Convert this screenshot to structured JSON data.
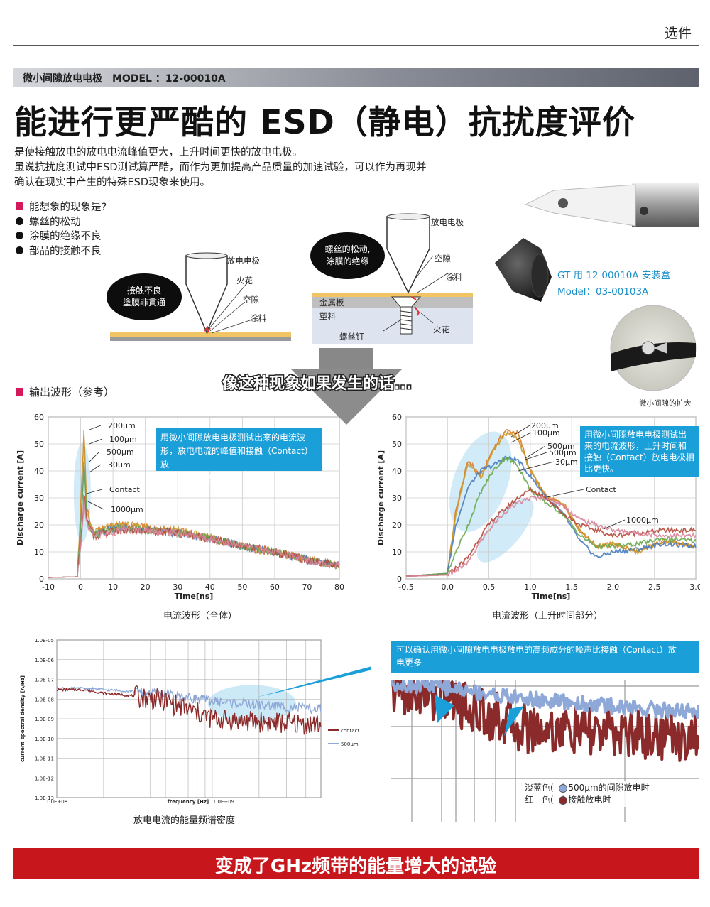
{
  "header": {
    "tab": "选件"
  },
  "model_bar": "微小间隙放电电极　MODEL ：12-00010A",
  "title": "能进行更严酷的 ESD（静电）抗扰度评价",
  "intro": [
    "是使接触放电的放电电流峰值更大，上升时间更快的放电电极。",
    "虽说抗扰度测试中ESD测试算严酷，而作为更加提高产品质量的加速试验，可以作为再现并",
    "确认在现实中产生的特殊ESD现象来使用。"
  ],
  "phenomena": {
    "heading": "能想象的现象是?",
    "items": [
      "螺丝的松动",
      "涂膜的绝缘不良",
      "部品的接触不良"
    ]
  },
  "diagram1": {
    "bubble": [
      "接触不良",
      "塗膜非貫通"
    ],
    "labels": {
      "electrode": "放电电极",
      "spark": "火花",
      "gap": "空隙",
      "coating": "涂料"
    }
  },
  "diagram2": {
    "bubble": [
      "螺丝的松动,",
      "涂膜的绝缘"
    ],
    "labels": {
      "electrode": "放电电极",
      "gap": "空隙",
      "coating": "涂料",
      "metal": "金属板",
      "plastic": "塑料",
      "screw": "螺丝钉",
      "spark": "火花"
    }
  },
  "accessory": {
    "box_label": "GT 用 12-00010A 安装盒",
    "box_model": "Model：03-00103A",
    "zoom_caption": "微小间隙的扩大"
  },
  "arrow_text": "像这种现象如果发生的话...",
  "waveform": {
    "heading": "输出波形（参考）",
    "ylabel": "Discharge current [A]",
    "xlabel": "Time[ns]",
    "caption_full": "电流波形（全体）",
    "caption_rise": "电流波形（上升时间部分）",
    "note_full": [
      "用微小间隙放电电极测试出来的电流波",
      "形，放电电流的峰值和接触（Contact）放",
      "电电极相比更大。"
    ],
    "note_rise": [
      "用微小间隙放电电极测试出",
      "来的电流波形，上升时间和",
      "接触（Contact）放电电极相",
      "比更快。"
    ],
    "series_labels": [
      "200μm",
      "100μm",
      "500μm",
      "30μm",
      "Contact",
      "1000μm"
    ],
    "series_colors": [
      "#e07a1f",
      "#c89a2c",
      "#4a7fc0",
      "#6aa84f",
      "#b64a3c",
      "#d8869a",
      "#8c3b6e",
      "#3aa0a0"
    ]
  },
  "spectrum": {
    "ylabel": "current spectral density [A/Hz]",
    "xlabel": "frequency [Hz]",
    "yticks": [
      "1.0E-05",
      "1.0E-06",
      "1.0E-07",
      "1.0E-08",
      "1.0E-09",
      "1.0E-10",
      "1.0E-11",
      "1.0E-12",
      "1.0E-13"
    ],
    "xticks": [
      "1.0E+08",
      "1.0E+09"
    ],
    "legend": [
      "contact",
      "500μm"
    ],
    "caption": "放电电流的能量频谱密度",
    "note": [
      "可以确认用微小间隙放电电极放电的高频成分的噪声比接触（Contact）放",
      "电更多"
    ],
    "zoom_legend": [
      "淡蓝色(　):500μm的间隙放电时",
      "红　色(　):接触放电时"
    ]
  },
  "footer_banner": "变成了GHz频带的能量增大的试验",
  "chart_data": [
    {
      "type": "line",
      "title": "电流波形（全体）",
      "xlabel": "Time[ns]",
      "ylabel": "Discharge current [A]",
      "xlim": [
        -10,
        80
      ],
      "ylim": [
        0,
        60
      ],
      "xticks": [
        -10,
        0,
        10,
        20,
        30,
        40,
        50,
        60,
        70,
        80
      ],
      "yticks": [
        0,
        10,
        20,
        30,
        40,
        50,
        60
      ],
      "grid": true,
      "series": [
        {
          "name": "200μm",
          "x": [
            -10,
            -1,
            0.5,
            1,
            2,
            4,
            8,
            12,
            20,
            30,
            40,
            50,
            60,
            70,
            80
          ],
          "values": [
            0.5,
            0.8,
            40,
            55,
            25,
            17,
            19,
            20,
            19,
            18,
            15,
            12,
            10,
            7,
            5
          ]
        },
        {
          "name": "100μm",
          "x": [
            -10,
            -1,
            0.5,
            1,
            2,
            4,
            8,
            12,
            20,
            30,
            40,
            50,
            60,
            70,
            80
          ],
          "values": [
            0.5,
            0.8,
            38,
            53,
            24,
            17,
            19,
            20,
            19,
            18,
            15,
            12,
            10,
            7,
            5
          ]
        },
        {
          "name": "500μm",
          "x": [
            -10,
            -1,
            0.5,
            1,
            2,
            4,
            8,
            12,
            20,
            30,
            40,
            50,
            60,
            70,
            80
          ],
          "values": [
            0.5,
            0.8,
            30,
            44,
            22,
            16,
            18,
            19,
            18,
            17,
            15,
            12,
            10,
            7,
            5
          ]
        },
        {
          "name": "30μm",
          "x": [
            -10,
            -1,
            0.5,
            1,
            2,
            4,
            8,
            12,
            20,
            30,
            40,
            50,
            60,
            70,
            80
          ],
          "values": [
            0.5,
            0.8,
            28,
            42,
            22,
            16,
            18,
            19,
            18,
            17,
            15,
            12,
            10,
            7,
            5
          ]
        },
        {
          "name": "Contact",
          "x": [
            -10,
            -1,
            0.5,
            1,
            2,
            4,
            8,
            12,
            20,
            30,
            40,
            50,
            60,
            70,
            80
          ],
          "values": [
            0.5,
            0.8,
            20,
            32,
            21,
            16,
            17,
            18,
            18,
            17,
            15,
            12,
            10,
            7,
            5
          ]
        },
        {
          "name": "1000μm",
          "x": [
            -10,
            -1,
            0.5,
            1,
            2,
            4,
            8,
            12,
            20,
            30,
            40,
            50,
            60,
            70,
            80
          ],
          "values": [
            0.5,
            0.8,
            18,
            28,
            20,
            16,
            17,
            18,
            18,
            17,
            15,
            12,
            10,
            7,
            5
          ]
        }
      ]
    },
    {
      "type": "line",
      "title": "电流波形（上升时间部分）",
      "xlabel": "Time[ns]",
      "ylabel": "Discharge current [A]",
      "xlim": [
        -0.5,
        3.0
      ],
      "ylim": [
        0,
        60
      ],
      "xticks": [
        -0.5,
        0.0,
        0.5,
        1.0,
        1.5,
        2.0,
        2.5,
        3.0
      ],
      "yticks": [
        0,
        10,
        20,
        30,
        40,
        50,
        60
      ],
      "grid": true,
      "series": [
        {
          "name": "200μm",
          "x": [
            -0.5,
            0,
            0.1,
            0.25,
            0.4,
            0.55,
            0.7,
            0.85,
            1.0,
            1.2,
            1.4,
            1.6,
            1.8,
            2.0,
            2.3,
            2.6,
            3.0
          ],
          "values": [
            1,
            2,
            25,
            44,
            38,
            48,
            55,
            54,
            40,
            30,
            28,
            18,
            12,
            13,
            10,
            14,
            12
          ]
        },
        {
          "name": "100μm",
          "x": [
            -0.5,
            0,
            0.1,
            0.25,
            0.4,
            0.55,
            0.7,
            0.85,
            1.0,
            1.2,
            1.4,
            1.6,
            1.8,
            2.0,
            2.3,
            2.6,
            3.0
          ],
          "values": [
            1,
            2,
            24,
            43,
            37,
            47,
            54,
            52,
            40,
            30,
            28,
            18,
            12,
            13,
            10,
            14,
            12
          ]
        },
        {
          "name": "500μm",
          "x": [
            -0.5,
            0,
            0.1,
            0.25,
            0.4,
            0.55,
            0.7,
            0.85,
            1.0,
            1.2,
            1.4,
            1.6,
            1.8,
            2.0,
            2.3,
            2.6,
            3.0
          ],
          "values": [
            1,
            2,
            20,
            34,
            40,
            42,
            45,
            44,
            38,
            30,
            24,
            14,
            8,
            10,
            11,
            13,
            12
          ]
        },
        {
          "name": "30μm",
          "x": [
            -0.5,
            0,
            0.1,
            0.25,
            0.4,
            0.55,
            0.7,
            0.85,
            1.0,
            1.2,
            1.4,
            1.6,
            1.8,
            2.0,
            2.3,
            2.6,
            3.0
          ],
          "values": [
            1,
            2,
            10,
            20,
            32,
            40,
            45,
            42,
            33,
            28,
            24,
            16,
            12,
            12,
            13,
            15,
            14
          ]
        },
        {
          "name": "Contact",
          "x": [
            -0.5,
            0,
            0.1,
            0.25,
            0.4,
            0.55,
            0.7,
            0.85,
            1.0,
            1.2,
            1.4,
            1.6,
            1.8,
            2.0,
            2.3,
            2.6,
            3.0
          ],
          "values": [
            1,
            1.5,
            4,
            8,
            16,
            22,
            26,
            30,
            33,
            30,
            24,
            20,
            18,
            16,
            17,
            18,
            18
          ]
        },
        {
          "name": "1000μm",
          "x": [
            -0.5,
            0,
            0.1,
            0.25,
            0.4,
            0.55,
            0.7,
            0.85,
            1.0,
            1.2,
            1.4,
            1.6,
            1.8,
            2.0,
            2.3,
            2.6,
            3.0
          ],
          "values": [
            1,
            1.5,
            3,
            6,
            14,
            20,
            25,
            28,
            30,
            30,
            27,
            22,
            20,
            18,
            17,
            16,
            16
          ]
        }
      ]
    },
    {
      "type": "line",
      "title": "放电电流的能量频谱密度",
      "xlabel": "frequency [Hz]",
      "ylabel": "current spectral density [A/Hz]",
      "xscale": "log",
      "yscale": "log",
      "xlim": [
        100000000.0,
        5000000000.0
      ],
      "ylim": [
        1e-13,
        1e-05
      ],
      "grid": true,
      "legend": "right",
      "series": [
        {
          "name": "contact",
          "x": [
            100000000.0,
            150000000.0,
            200000000.0,
            300000000.0,
            500000000.0,
            700000000.0,
            1000000000.0,
            1500000000.0,
            2000000000.0,
            3000000000.0,
            5000000000.0
          ],
          "values": [
            3e-08,
            3e-08,
            2e-08,
            1.5e-08,
            8e-09,
            3e-09,
            1e-09,
            8e-10,
            7e-10,
            6e-10,
            5e-10
          ]
        },
        {
          "name": "500μm",
          "x": [
            100000000.0,
            150000000.0,
            200000000.0,
            300000000.0,
            500000000.0,
            700000000.0,
            1000000000.0,
            1500000000.0,
            2000000000.0,
            3000000000.0,
            5000000000.0
          ],
          "values": [
            3.5e-08,
            3.5e-08,
            3e-08,
            2.5e-08,
            1.8e-08,
            1.2e-08,
            8e-09,
            6e-09,
            5e-09,
            4e-09,
            3e-09
          ]
        }
      ]
    }
  ]
}
